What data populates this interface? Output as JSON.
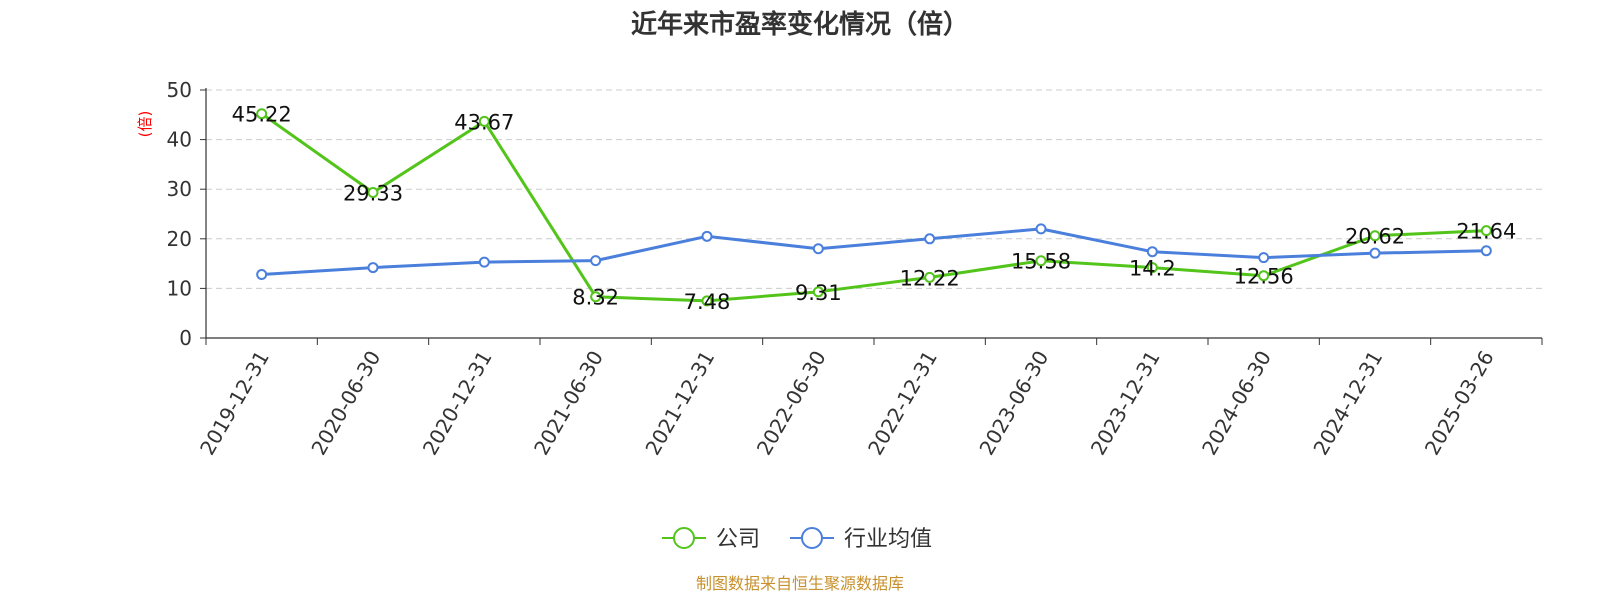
{
  "chart_data": {
    "type": "line",
    "title": "近年来市盈率变化情况（倍）",
    "ylabel": "(倍)",
    "ylim": [
      0,
      50
    ],
    "yticks": [
      0,
      10,
      20,
      30,
      40,
      50
    ],
    "grid": true,
    "legend_position": "bottom",
    "categories": [
      "2019-12-31",
      "2020-06-30",
      "2020-12-31",
      "2021-06-30",
      "2021-12-31",
      "2022-06-30",
      "2022-12-31",
      "2023-06-30",
      "2023-12-31",
      "2024-06-30",
      "2024-12-31",
      "2025-03-26"
    ],
    "series": [
      {
        "name": "公司",
        "color": "#52c41a",
        "values": [
          45.22,
          29.33,
          43.67,
          8.32,
          7.48,
          9.31,
          12.22,
          15.58,
          14.2,
          12.56,
          20.62,
          21.64
        ],
        "labels": [
          "45.22",
          "29.33",
          "43.67",
          "8.32",
          "7.48",
          "9.31",
          "12.22",
          "15.58",
          "14.2",
          "12.56",
          "20.62",
          "21.64"
        ]
      },
      {
        "name": "行业均值",
        "color": "#4a7fdc",
        "values": [
          12.8,
          14.2,
          15.3,
          15.6,
          20.5,
          18.0,
          20.0,
          22.0,
          17.4,
          16.2,
          17.1,
          17.6
        ]
      }
    ]
  },
  "source_text": "制图数据来自恒生聚源数据库",
  "colors": {
    "ylabel": "#ff0000",
    "source": "#c8902c",
    "axis": "#333333",
    "grid": "#cccccc"
  }
}
